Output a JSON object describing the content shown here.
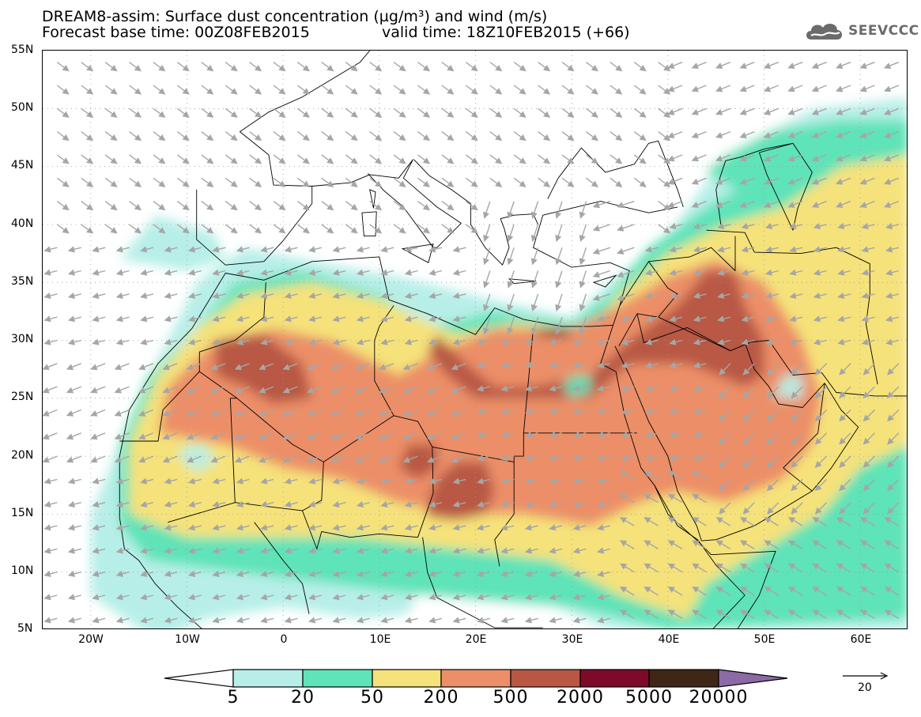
{
  "title": {
    "line1": "DREAM8-assim: Surface dust concentration (µg/m³) and wind (m/s)",
    "line2": "Forecast base time: 00Z08FEB2015",
    "valid": "valid time: 18Z10FEB2015 (+66)"
  },
  "logo": {
    "text": "SEEVCCC",
    "icon": "cloud-icon"
  },
  "map": {
    "lon_range": [
      -25,
      65
    ],
    "lat_range": [
      5,
      55
    ],
    "lat_labels": [
      "55N",
      "50N",
      "45N",
      "40N",
      "35N",
      "30N",
      "25N",
      "20N",
      "15N",
      "10N",
      "5N"
    ],
    "lon_labels": [
      "20W",
      "10W",
      "0",
      "10E",
      "20E",
      "30E",
      "40E",
      "50E",
      "60E"
    ],
    "grid": "dotted",
    "coastline_color": "#000000",
    "wind_vector_color": "#a6a6a6"
  },
  "colorbar": {
    "labels": [
      "5",
      "20",
      "50",
      "200",
      "500",
      "2000",
      "5000",
      "20000"
    ],
    "colors": [
      "#ffffff",
      "#b7efe8",
      "#5fe3b8",
      "#f5e27a",
      "#ec8f68",
      "#b85844",
      "#7e0a2a",
      "#3e2716",
      "#8c6aa6"
    ],
    "units": "µg/m³"
  },
  "reference_vector": {
    "label": "20",
    "units": "m/s"
  }
}
